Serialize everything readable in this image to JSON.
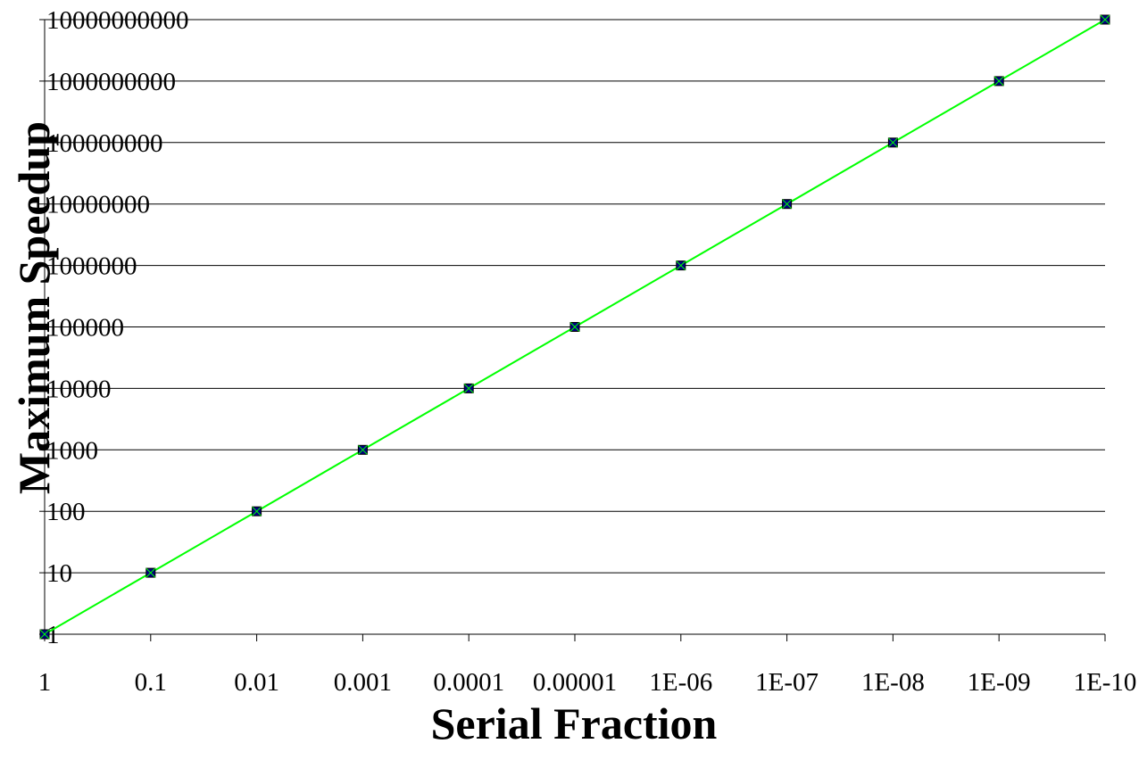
{
  "chart_data": {
    "type": "line",
    "title": "",
    "xlabel": "Serial Fraction",
    "ylabel": "Maximum Speedup",
    "categories": [
      "1",
      "0.1",
      "0.01",
      "0.001",
      "0.0001",
      "0.00001",
      "1E-06",
      "1E-07",
      "1E-08",
      "1E-09",
      "1E-10"
    ],
    "y_scale": "log",
    "ylim": [
      1,
      10000000000
    ],
    "y_ticks": [
      "1",
      "10",
      "100",
      "1000",
      "10000",
      "100000",
      "1000000",
      "10000000",
      "100000000",
      "1000000000",
      "10000000000"
    ],
    "grid": true,
    "legend": "none",
    "series": [
      {
        "values": [
          1,
          10,
          100,
          1000,
          10000,
          100000,
          1000000,
          10000000,
          100000000,
          1000000000,
          10000000000
        ],
        "line_color": "#00ff00",
        "marker": "square-x",
        "marker_color": "#000080"
      }
    ]
  }
}
